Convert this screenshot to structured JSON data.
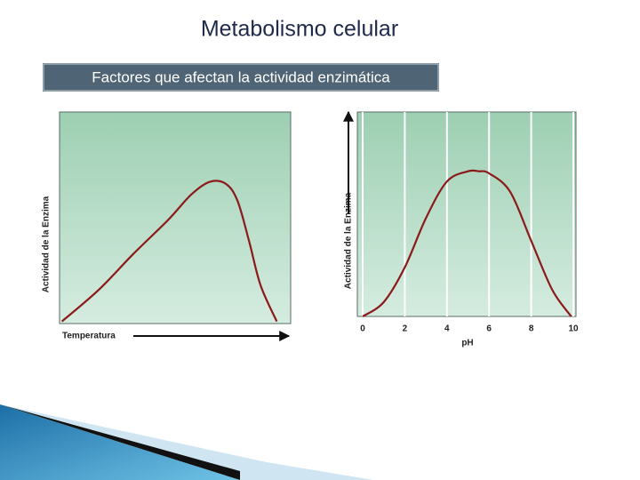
{
  "slide": {
    "title": "Metabolismo celular",
    "subtitle": "Factores que afectan la actividad enzimática"
  },
  "chart_data": [
    {
      "type": "line",
      "x_label": "Temperatura",
      "y_label": "Actividad de la Enzima",
      "color": "#8b1a1a",
      "x": [
        0.01,
        0.17,
        0.32,
        0.47,
        0.57,
        0.65,
        0.72,
        0.77,
        0.82,
        0.87,
        0.94
      ],
      "values": [
        0.01,
        0.16,
        0.33,
        0.49,
        0.61,
        0.67,
        0.66,
        0.58,
        0.39,
        0.18,
        0.01
      ],
      "xlim": [
        0,
        1
      ],
      "ylim": [
        0,
        1
      ]
    },
    {
      "type": "line",
      "x_label": "pH",
      "y_label": "Actividad de la Enzima",
      "color": "#8b1a1a",
      "x": [
        0,
        1,
        2,
        3,
        4,
        5,
        5.5,
        6,
        7,
        8,
        9,
        9.9
      ],
      "values": [
        0.0,
        0.07,
        0.24,
        0.48,
        0.66,
        0.71,
        0.71,
        0.7,
        0.61,
        0.37,
        0.13,
        0.0
      ],
      "xlim": [
        0,
        10
      ],
      "ylim": [
        0,
        1
      ],
      "xticks": [
        0,
        2,
        4,
        6,
        8,
        10
      ],
      "grid": true
    }
  ]
}
